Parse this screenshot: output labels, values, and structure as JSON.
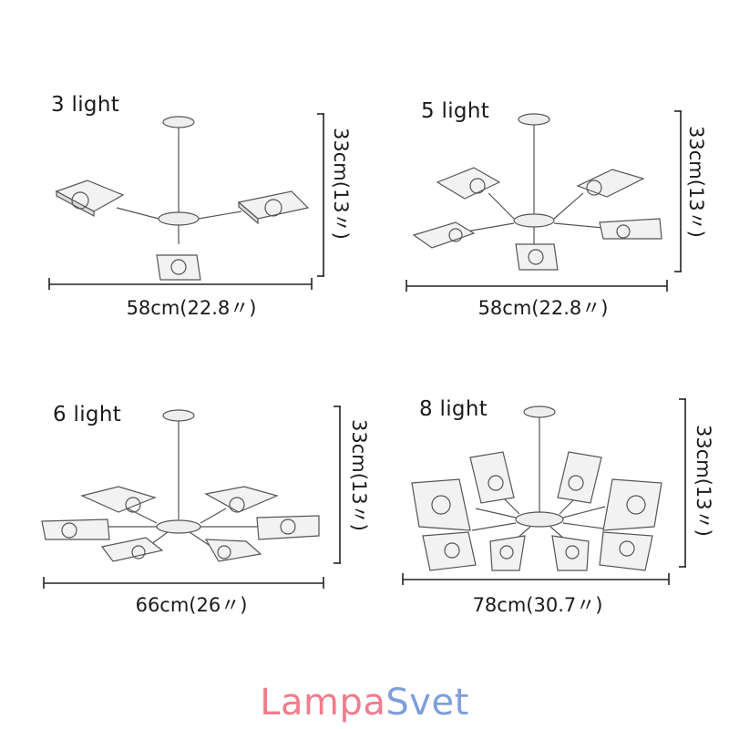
{
  "panels": [
    {
      "title": "3 light",
      "width_label": "58cm(22.8〃)",
      "height_label": "33cm(13〃)"
    },
    {
      "title": "5 light",
      "width_label": "58cm(22.8〃)",
      "height_label": "33cm(13〃)"
    },
    {
      "title": "6 light",
      "width_label": "66cm(26〃)",
      "height_label": "33cm(13〃)"
    },
    {
      "title": "8 light",
      "width_label": "78cm(30.7〃)",
      "height_label": "33cm(13〃)"
    }
  ],
  "brand": {
    "part1": "Lampa",
    "part2": "Svet",
    "color1": "#f07c8c",
    "color2": "#7d9fd9"
  }
}
